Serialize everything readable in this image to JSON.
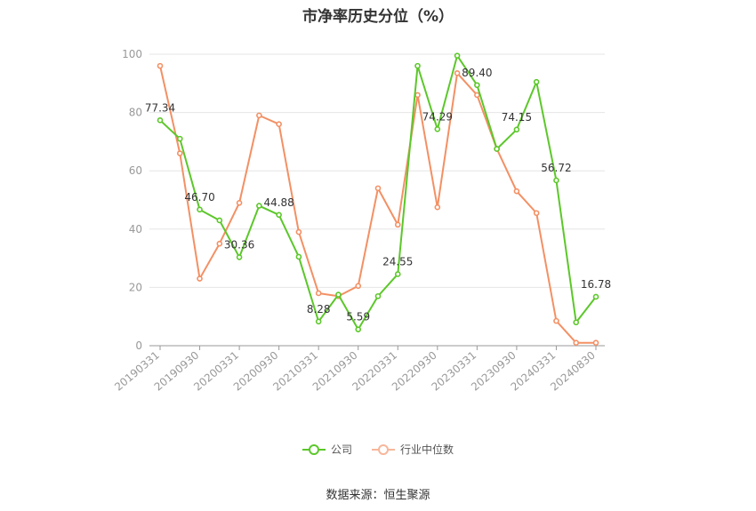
{
  "chart_data": {
    "type": "line",
    "title": "市净率历史分位（%）",
    "xlabel": "",
    "ylabel": "",
    "ylim": [
      0,
      100
    ],
    "yticks": [
      0,
      20,
      40,
      60,
      80,
      100
    ],
    "x": [
      "20190331",
      "20190630",
      "20190930",
      "20191231",
      "20200331",
      "20200630",
      "20200930",
      "20201231",
      "20210331",
      "20210630",
      "20210930",
      "20211231",
      "20220331",
      "20220630",
      "20220930",
      "20221231",
      "20230331",
      "20230630",
      "20230930",
      "20231231",
      "20240331",
      "20240630",
      "20240830"
    ],
    "x_tick_labels": [
      "20190331",
      "20190930",
      "20200331",
      "20200930",
      "20210331",
      "20210930",
      "20220331",
      "20220930",
      "20230331",
      "20230930",
      "20240331",
      "20240830"
    ],
    "grid": true,
    "legend_position": "bottom",
    "series": [
      {
        "name": "公司",
        "color": "#5cc72a",
        "values": [
          77.34,
          71.0,
          46.7,
          43.0,
          30.36,
          48.0,
          44.88,
          30.5,
          8.28,
          17.5,
          5.59,
          17.0,
          24.55,
          96.0,
          74.29,
          99.5,
          89.4,
          67.5,
          74.15,
          90.5,
          56.72,
          8.0,
          16.78
        ],
        "labels": {
          "0": "77.34",
          "2": "46.70",
          "4": "30.36",
          "6": "44.88",
          "8": "8.28",
          "10": "5.59",
          "12": "24.55",
          "14": "74.29",
          "16": "89.40",
          "18": "74.15",
          "20": "56.72",
          "22": "16.78"
        }
      },
      {
        "name": "行业中位数",
        "color": "#f39064",
        "values": [
          96.0,
          66.0,
          23.0,
          35.0,
          49.0,
          79.0,
          76.0,
          39.0,
          18.0,
          17.0,
          20.5,
          54.0,
          41.5,
          86.0,
          47.5,
          93.5,
          86.0,
          67.5,
          53.0,
          45.5,
          8.5,
          1.0,
          1.0
        ]
      }
    ]
  },
  "source_text": "数据来源：恒生聚源"
}
